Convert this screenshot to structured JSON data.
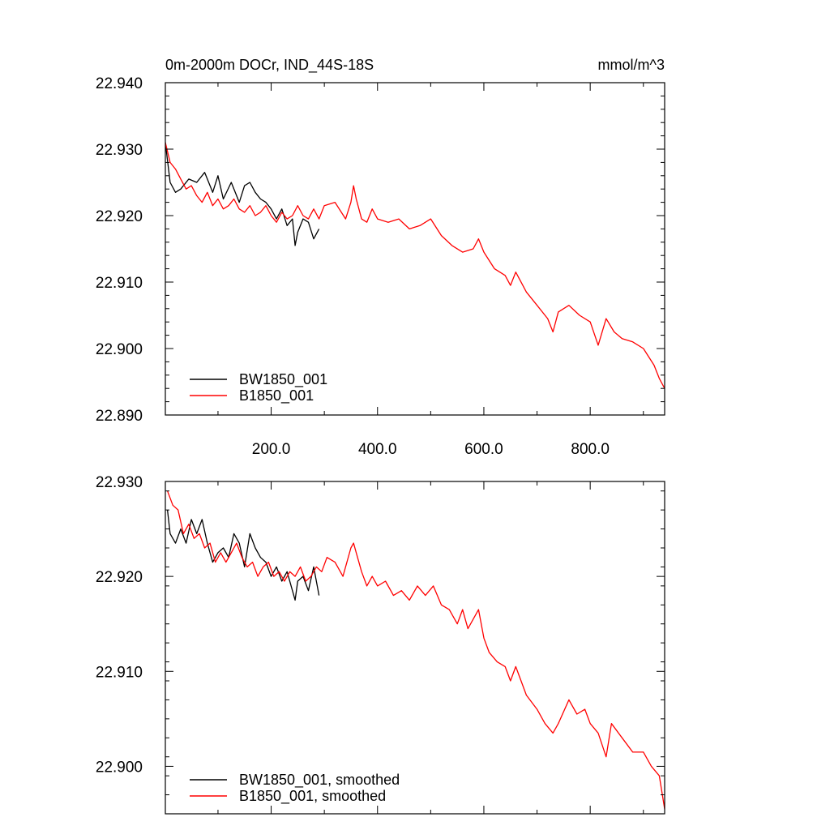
{
  "header": {
    "title": "0m-2000m DOCr, IND_44S-18S",
    "units": "mmol/m^3"
  },
  "colors": {
    "BW1850_001": "#000000",
    "B1850_001": "#ff0000",
    "frame": "#000000",
    "background": "#ffffff"
  },
  "chart_data": [
    {
      "type": "line",
      "title": "0m-2000m DOCr, IND_44S-18S",
      "units_label": "mmol/m^3",
      "xlim": [
        1,
        940
      ],
      "ylim": [
        22.89,
        22.94
      ],
      "x_ticks": [
        200,
        400,
        600,
        800
      ],
      "x_tick_labels": [
        "200.0",
        "400.0",
        "600.0",
        "800.0"
      ],
      "y_ticks": [
        22.89,
        22.9,
        22.91,
        22.92,
        22.93,
        22.94
      ],
      "y_tick_labels": [
        "22.890",
        "22.900",
        "22.910",
        "22.920",
        "22.930",
        "22.940"
      ],
      "grid": false,
      "legend_position": "bottom-left",
      "series": [
        {
          "name": "BW1850_001",
          "color": "#000000",
          "x": [
            1,
            10,
            20,
            30,
            45,
            60,
            75,
            90,
            100,
            110,
            125,
            140,
            150,
            160,
            170,
            180,
            190,
            200,
            210,
            220,
            230,
            240,
            245,
            250,
            260,
            270,
            280,
            290
          ],
          "y": [
            22.931,
            22.925,
            22.9235,
            22.924,
            22.9255,
            22.925,
            22.9265,
            22.9235,
            22.926,
            22.9225,
            22.925,
            22.922,
            22.9245,
            22.925,
            22.9235,
            22.9225,
            22.922,
            22.921,
            22.9195,
            22.921,
            22.9185,
            22.9195,
            22.9155,
            22.9175,
            22.9195,
            22.919,
            22.9165,
            22.918
          ]
        },
        {
          "name": "B1850_001",
          "color": "#ff0000",
          "x": [
            1,
            10,
            20,
            30,
            40,
            50,
            60,
            70,
            80,
            90,
            100,
            110,
            120,
            130,
            140,
            150,
            160,
            170,
            180,
            190,
            200,
            210,
            220,
            230,
            240,
            250,
            260,
            270,
            280,
            290,
            300,
            320,
            340,
            350,
            355,
            360,
            370,
            380,
            390,
            400,
            420,
            440,
            460,
            480,
            500,
            520,
            540,
            560,
            580,
            590,
            600,
            620,
            640,
            650,
            660,
            680,
            700,
            720,
            730,
            740,
            760,
            780,
            800,
            815,
            830,
            845,
            860,
            880,
            900,
            920,
            930,
            940
          ],
          "y": [
            22.931,
            22.928,
            22.927,
            22.9255,
            22.924,
            22.9245,
            22.923,
            22.922,
            22.9235,
            22.9215,
            22.9225,
            22.921,
            22.9215,
            22.9225,
            22.921,
            22.9205,
            22.9215,
            22.92,
            22.9205,
            22.9215,
            22.92,
            22.919,
            22.9205,
            22.9195,
            22.92,
            22.9215,
            22.92,
            22.9195,
            22.921,
            22.9195,
            22.9215,
            22.922,
            22.9195,
            22.922,
            22.9245,
            22.9225,
            22.9195,
            22.919,
            22.921,
            22.9195,
            22.919,
            22.9195,
            22.918,
            22.9185,
            22.9195,
            22.917,
            22.9155,
            22.9145,
            22.915,
            22.9165,
            22.9145,
            22.912,
            22.911,
            22.9095,
            22.9115,
            22.9085,
            22.9065,
            22.9045,
            22.9025,
            22.9055,
            22.9065,
            22.905,
            22.904,
            22.9005,
            22.9045,
            22.9025,
            22.9015,
            22.901,
            22.9,
            22.8975,
            22.8955,
            22.894
          ]
        }
      ]
    },
    {
      "type": "line",
      "xlim": [
        1,
        940
      ],
      "ylim": [
        22.895,
        22.93
      ],
      "x_ticks": [
        200,
        400,
        600,
        800
      ],
      "y_ticks": [
        22.9,
        22.91,
        22.92,
        22.93
      ],
      "y_tick_labels": [
        "22.900",
        "22.910",
        "22.920",
        "22.930"
      ],
      "grid": false,
      "legend_position": "bottom-left",
      "series": [
        {
          "name": "BW1850_001, smoothed",
          "color": "#000000",
          "x": [
            5,
            10,
            20,
            30,
            40,
            50,
            60,
            70,
            80,
            90,
            100,
            110,
            120,
            130,
            140,
            150,
            160,
            170,
            180,
            190,
            200,
            210,
            220,
            230,
            240,
            245,
            250,
            260,
            270,
            280,
            290
          ],
          "y": [
            22.927,
            22.9245,
            22.9235,
            22.925,
            22.9235,
            22.926,
            22.9245,
            22.926,
            22.9235,
            22.9215,
            22.9225,
            22.923,
            22.922,
            22.9245,
            22.9235,
            22.921,
            22.9245,
            22.923,
            22.922,
            22.9215,
            22.92,
            22.921,
            22.9195,
            22.9205,
            22.9185,
            22.9175,
            22.9195,
            22.92,
            22.9185,
            22.921,
            22.918
          ]
        },
        {
          "name": "B1850_001, smoothed",
          "color": "#ff0000",
          "x": [
            5,
            15,
            25,
            35,
            45,
            55,
            65,
            75,
            85,
            95,
            105,
            115,
            125,
            135,
            145,
            155,
            165,
            175,
            185,
            195,
            205,
            215,
            225,
            235,
            245,
            255,
            265,
            275,
            285,
            295,
            305,
            320,
            335,
            350,
            355,
            360,
            370,
            380,
            390,
            400,
            415,
            430,
            445,
            460,
            475,
            490,
            505,
            520,
            535,
            550,
            560,
            570,
            580,
            590,
            600,
            610,
            625,
            640,
            650,
            660,
            680,
            700,
            715,
            730,
            740,
            760,
            775,
            790,
            800,
            815,
            830,
            840,
            860,
            880,
            900,
            915,
            930,
            940
          ],
          "y": [
            22.929,
            22.9275,
            22.927,
            22.9245,
            22.9255,
            22.924,
            22.9245,
            22.923,
            22.9235,
            22.9215,
            22.9225,
            22.9215,
            22.9225,
            22.9235,
            22.922,
            22.921,
            22.9215,
            22.92,
            22.921,
            22.9215,
            22.92,
            22.9205,
            22.9195,
            22.9205,
            22.92,
            22.921,
            22.9195,
            22.92,
            22.921,
            22.9205,
            22.922,
            22.9215,
            22.92,
            22.923,
            22.9235,
            22.9225,
            22.9205,
            22.919,
            22.92,
            22.919,
            22.9195,
            22.918,
            22.9185,
            22.9175,
            22.919,
            22.918,
            22.919,
            22.917,
            22.9165,
            22.915,
            22.9165,
            22.9145,
            22.9155,
            22.9165,
            22.9135,
            22.912,
            22.911,
            22.9105,
            22.909,
            22.9105,
            22.9075,
            22.906,
            22.9045,
            22.9035,
            22.9045,
            22.907,
            22.9055,
            22.906,
            22.9045,
            22.9035,
            22.901,
            22.9045,
            22.903,
            22.9015,
            22.9015,
            22.9,
            22.899,
            22.8955
          ]
        }
      ]
    }
  ]
}
